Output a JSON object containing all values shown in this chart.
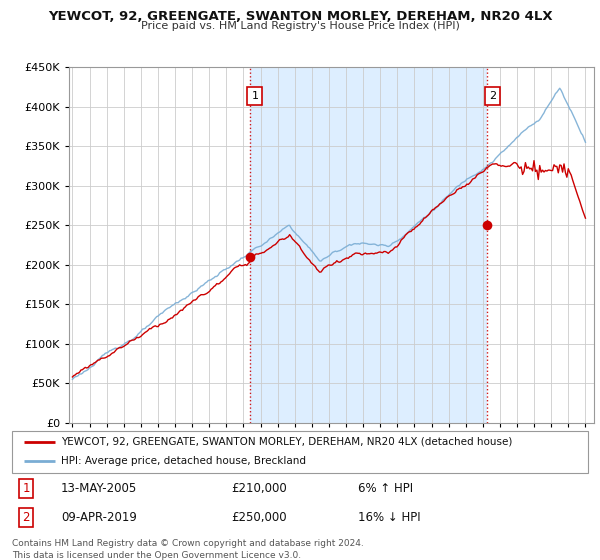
{
  "title": "YEWCOT, 92, GREENGATE, SWANTON MORLEY, DEREHAM, NR20 4LX",
  "subtitle": "Price paid vs. HM Land Registry's House Price Index (HPI)",
  "legend_line1": "YEWCOT, 92, GREENGATE, SWANTON MORLEY, DEREHAM, NR20 4LX (detached house)",
  "legend_line2": "HPI: Average price, detached house, Breckland",
  "annotation1_label": "1",
  "annotation1_date": "13-MAY-2005",
  "annotation1_price": "£210,000",
  "annotation1_hpi": "6% ↑ HPI",
  "annotation2_label": "2",
  "annotation2_date": "09-APR-2019",
  "annotation2_price": "£250,000",
  "annotation2_hpi": "16% ↓ HPI",
  "footer": "Contains HM Land Registry data © Crown copyright and database right 2024.\nThis data is licensed under the Open Government Licence v3.0.",
  "sale1_x": 2005.37,
  "sale1_y": 210000,
  "sale2_x": 2019.27,
  "sale2_y": 250000,
  "vline1_x": 2005.37,
  "vline2_x": 2019.27,
  "ylim": [
    0,
    450000
  ],
  "xlim_start": 1994.8,
  "xlim_end": 2025.5,
  "red_color": "#cc0000",
  "blue_color": "#7aadd4",
  "shade_color": "#ddeeff",
  "background_color": "#ffffff",
  "grid_color": "#cccccc"
}
